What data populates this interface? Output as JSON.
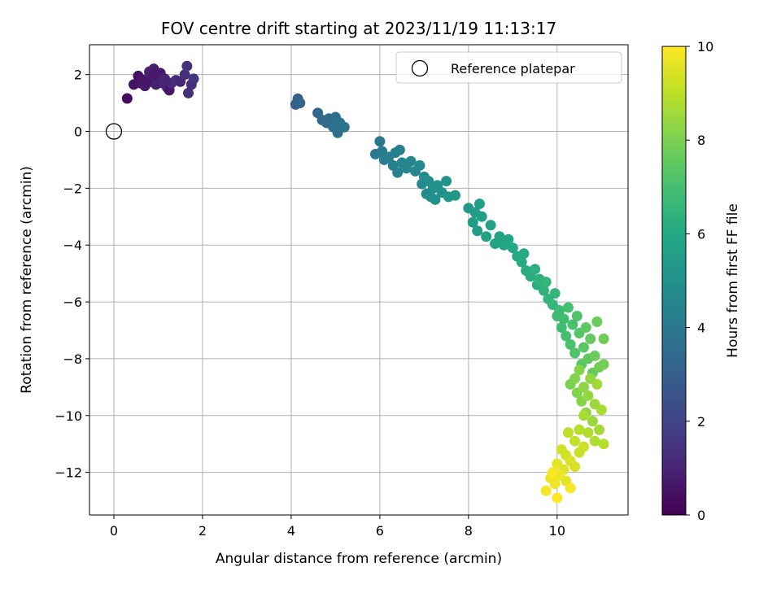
{
  "chart_data": {
    "type": "scatter",
    "title": "FOV centre drift starting at 2023/11/19 11:13:17",
    "xlabel": "Angular distance from reference (arcmin)",
    "ylabel": "Rotation from reference (arcmin)",
    "xlim": [
      -0.55,
      11.6
    ],
    "ylim": [
      -13.5,
      3.05
    ],
    "xticks": [
      0,
      2,
      4,
      6,
      8,
      10
    ],
    "yticks": [
      2,
      0,
      -2,
      -4,
      -6,
      -8,
      -10,
      -12
    ],
    "xtick_labels": [
      "0",
      "2",
      "4",
      "6",
      "8",
      "10"
    ],
    "ytick_labels": [
      "2",
      "0",
      "−2",
      "−4",
      "−6",
      "−8",
      "−10",
      "−12"
    ],
    "grid": true,
    "legend": {
      "placement": "top-right",
      "entries": [
        "Reference platepar"
      ]
    },
    "reference_point": {
      "x": 0,
      "y": 0,
      "label": "Reference platepar"
    },
    "colorbar": {
      "label": "Hours from first FF file",
      "range": [
        0,
        10
      ],
      "ticks": [
        0,
        2,
        4,
        6,
        8,
        10
      ],
      "tick_labels": [
        "0",
        "2",
        "4",
        "6",
        "8",
        "10"
      ],
      "colormap": "viridis"
    },
    "series": [
      {
        "points": [
          {
            "x": 0.3,
            "y": 1.16,
            "t": 0.3
          },
          {
            "x": 0.45,
            "y": 1.65,
            "t": 0.5
          },
          {
            "x": 0.55,
            "y": 1.95,
            "t": 0.4
          },
          {
            "x": 0.6,
            "y": 1.7,
            "t": 0.6
          },
          {
            "x": 0.7,
            "y": 1.6,
            "t": 0.7
          },
          {
            "x": 0.75,
            "y": 1.85,
            "t": 0.8
          },
          {
            "x": 0.8,
            "y": 2.1,
            "t": 0.9
          },
          {
            "x": 0.85,
            "y": 1.75,
            "t": 0.5
          },
          {
            "x": 0.9,
            "y": 2.2,
            "t": 0.8
          },
          {
            "x": 0.95,
            "y": 1.65,
            "t": 0.9
          },
          {
            "x": 1.0,
            "y": 1.9,
            "t": 1.0
          },
          {
            "x": 1.05,
            "y": 2.05,
            "t": 0.7
          },
          {
            "x": 1.1,
            "y": 1.7,
            "t": 1.0
          },
          {
            "x": 1.2,
            "y": 1.55,
            "t": 1.1
          },
          {
            "x": 1.25,
            "y": 1.45,
            "t": 0.6
          },
          {
            "x": 1.3,
            "y": 1.7,
            "t": 1.2
          },
          {
            "x": 1.4,
            "y": 1.8,
            "t": 1.3
          },
          {
            "x": 1.5,
            "y": 1.75,
            "t": 1.1
          },
          {
            "x": 1.6,
            "y": 2.0,
            "t": 1.3
          },
          {
            "x": 1.65,
            "y": 2.3,
            "t": 1.4
          },
          {
            "x": 1.68,
            "y": 1.35,
            "t": 1.4
          },
          {
            "x": 1.75,
            "y": 1.65,
            "t": 1.3
          },
          {
            "x": 1.8,
            "y": 1.85,
            "t": 1.5
          },
          {
            "x": 0.65,
            "y": 1.8,
            "t": 0.6
          },
          {
            "x": 0.88,
            "y": 1.95,
            "t": 0.7
          },
          {
            "x": 1.15,
            "y": 1.85,
            "t": 1.0
          },
          {
            "x": 4.1,
            "y": 0.95,
            "t": 3.0
          },
          {
            "x": 4.15,
            "y": 1.15,
            "t": 3.1
          },
          {
            "x": 4.2,
            "y": 1.0,
            "t": 3.2
          },
          {
            "x": 4.6,
            "y": 0.65,
            "t": 3.3
          },
          {
            "x": 4.7,
            "y": 0.4,
            "t": 3.4
          },
          {
            "x": 4.8,
            "y": 0.3,
            "t": 3.5
          },
          {
            "x": 4.85,
            "y": 0.45,
            "t": 3.5
          },
          {
            "x": 4.95,
            "y": 0.15,
            "t": 3.6
          },
          {
            "x": 5.0,
            "y": 0.5,
            "t": 3.6
          },
          {
            "x": 5.05,
            "y": -0.05,
            "t": 3.7
          },
          {
            "x": 5.1,
            "y": 0.3,
            "t": 3.7
          },
          {
            "x": 5.2,
            "y": 0.15,
            "t": 3.8
          },
          {
            "x": 5.9,
            "y": -0.8,
            "t": 4.0
          },
          {
            "x": 6.0,
            "y": -0.35,
            "t": 4.0
          },
          {
            "x": 6.05,
            "y": -0.7,
            "t": 4.1
          },
          {
            "x": 6.1,
            "y": -1.0,
            "t": 4.2
          },
          {
            "x": 6.2,
            "y": -0.9,
            "t": 4.2
          },
          {
            "x": 6.3,
            "y": -1.2,
            "t": 4.3
          },
          {
            "x": 6.35,
            "y": -0.75,
            "t": 4.3
          },
          {
            "x": 6.4,
            "y": -1.45,
            "t": 4.4
          },
          {
            "x": 6.45,
            "y": -0.65,
            "t": 4.4
          },
          {
            "x": 6.5,
            "y": -1.1,
            "t": 4.5
          },
          {
            "x": 6.6,
            "y": -1.3,
            "t": 4.5
          },
          {
            "x": 6.7,
            "y": -1.05,
            "t": 4.6
          },
          {
            "x": 6.8,
            "y": -1.4,
            "t": 4.6
          },
          {
            "x": 6.9,
            "y": -1.2,
            "t": 4.7
          },
          {
            "x": 6.95,
            "y": -1.85,
            "t": 4.7
          },
          {
            "x": 7.0,
            "y": -1.6,
            "t": 4.8
          },
          {
            "x": 7.05,
            "y": -2.2,
            "t": 4.8
          },
          {
            "x": 7.1,
            "y": -1.75,
            "t": 4.9
          },
          {
            "x": 7.2,
            "y": -2.0,
            "t": 4.9
          },
          {
            "x": 7.25,
            "y": -2.4,
            "t": 5.0
          },
          {
            "x": 7.3,
            "y": -1.9,
            "t": 5.0
          },
          {
            "x": 7.4,
            "y": -2.15,
            "t": 5.1
          },
          {
            "x": 7.5,
            "y": -1.75,
            "t": 5.1
          },
          {
            "x": 7.55,
            "y": -2.3,
            "t": 5.2
          },
          {
            "x": 7.7,
            "y": -2.25,
            "t": 5.2
          },
          {
            "x": 6.55,
            "y": -1.25,
            "t": 4.5
          },
          {
            "x": 7.15,
            "y": -2.3,
            "t": 4.9
          },
          {
            "x": 8.0,
            "y": -2.7,
            "t": 5.4
          },
          {
            "x": 8.1,
            "y": -3.2,
            "t": 5.5
          },
          {
            "x": 8.15,
            "y": -2.85,
            "t": 5.5
          },
          {
            "x": 8.2,
            "y": -3.5,
            "t": 5.5
          },
          {
            "x": 8.25,
            "y": -2.55,
            "t": 5.6
          },
          {
            "x": 8.3,
            "y": -3.0,
            "t": 5.6
          },
          {
            "x": 8.4,
            "y": -3.7,
            "t": 5.7
          },
          {
            "x": 8.5,
            "y": -3.3,
            "t": 5.7
          },
          {
            "x": 8.6,
            "y": -3.95,
            "t": 5.8
          },
          {
            "x": 8.7,
            "y": -3.7,
            "t": 5.8
          },
          {
            "x": 8.8,
            "y": -4.0,
            "t": 5.9
          },
          {
            "x": 8.9,
            "y": -3.8,
            "t": 5.9
          },
          {
            "x": 9.0,
            "y": -4.1,
            "t": 6.0
          },
          {
            "x": 9.1,
            "y": -4.4,
            "t": 6.0
          },
          {
            "x": 9.2,
            "y": -4.6,
            "t": 6.1
          },
          {
            "x": 9.25,
            "y": -4.3,
            "t": 6.1
          },
          {
            "x": 9.3,
            "y": -4.9,
            "t": 6.2
          },
          {
            "x": 9.4,
            "y": -5.1,
            "t": 6.2
          },
          {
            "x": 9.5,
            "y": -4.85,
            "t": 6.3
          },
          {
            "x": 9.55,
            "y": -5.4,
            "t": 6.3
          },
          {
            "x": 9.6,
            "y": -5.2,
            "t": 6.4
          },
          {
            "x": 9.7,
            "y": -5.6,
            "t": 6.4
          },
          {
            "x": 9.75,
            "y": -5.3,
            "t": 6.5
          },
          {
            "x": 9.8,
            "y": -5.9,
            "t": 6.5
          },
          {
            "x": 9.9,
            "y": -6.1,
            "t": 6.6
          },
          {
            "x": 9.95,
            "y": -5.7,
            "t": 6.6
          },
          {
            "x": 10.0,
            "y": -6.5,
            "t": 6.8
          },
          {
            "x": 10.05,
            "y": -6.3,
            "t": 6.8
          },
          {
            "x": 10.1,
            "y": -6.9,
            "t": 6.9
          },
          {
            "x": 10.15,
            "y": -6.6,
            "t": 6.9
          },
          {
            "x": 10.2,
            "y": -7.2,
            "t": 7.0
          },
          {
            "x": 10.25,
            "y": -6.2,
            "t": 7.0
          },
          {
            "x": 10.3,
            "y": -7.5,
            "t": 7.1
          },
          {
            "x": 10.35,
            "y": -6.8,
            "t": 7.1
          },
          {
            "x": 10.4,
            "y": -7.8,
            "t": 7.2
          },
          {
            "x": 10.45,
            "y": -6.5,
            "t": 7.2
          },
          {
            "x": 10.5,
            "y": -7.1,
            "t": 7.3
          },
          {
            "x": 10.55,
            "y": -8.2,
            "t": 7.4
          },
          {
            "x": 10.6,
            "y": -7.6,
            "t": 7.4
          },
          {
            "x": 10.65,
            "y": -6.9,
            "t": 7.5
          },
          {
            "x": 10.7,
            "y": -8.0,
            "t": 7.5
          },
          {
            "x": 10.75,
            "y": -7.3,
            "t": 7.6
          },
          {
            "x": 10.8,
            "y": -8.5,
            "t": 7.6
          },
          {
            "x": 10.85,
            "y": -7.9,
            "t": 7.7
          },
          {
            "x": 10.9,
            "y": -6.7,
            "t": 7.7
          },
          {
            "x": 11.05,
            "y": -7.3,
            "t": 7.8
          },
          {
            "x": 10.95,
            "y": -8.3,
            "t": 7.8
          },
          {
            "x": 11.05,
            "y": -8.2,
            "t": 7.9
          },
          {
            "x": 10.3,
            "y": -8.9,
            "t": 8.0
          },
          {
            "x": 10.4,
            "y": -8.7,
            "t": 8.1
          },
          {
            "x": 10.45,
            "y": -9.2,
            "t": 8.1
          },
          {
            "x": 10.5,
            "y": -8.4,
            "t": 8.2
          },
          {
            "x": 10.55,
            "y": -9.5,
            "t": 8.2
          },
          {
            "x": 10.6,
            "y": -9.0,
            "t": 8.3
          },
          {
            "x": 10.65,
            "y": -9.9,
            "t": 8.3
          },
          {
            "x": 10.7,
            "y": -9.3,
            "t": 8.4
          },
          {
            "x": 10.75,
            "y": -8.7,
            "t": 8.4
          },
          {
            "x": 10.8,
            "y": -10.2,
            "t": 8.5
          },
          {
            "x": 10.85,
            "y": -9.6,
            "t": 8.5
          },
          {
            "x": 10.9,
            "y": -8.9,
            "t": 8.6
          },
          {
            "x": 10.95,
            "y": -10.5,
            "t": 8.6
          },
          {
            "x": 11.0,
            "y": -9.8,
            "t": 8.7
          },
          {
            "x": 10.6,
            "y": -10.0,
            "t": 8.7
          },
          {
            "x": 10.7,
            "y": -10.6,
            "t": 8.8
          },
          {
            "x": 10.85,
            "y": -10.9,
            "t": 8.8
          },
          {
            "x": 11.05,
            "y": -11.0,
            "t": 8.9
          },
          {
            "x": 10.5,
            "y": -10.5,
            "t": 8.9
          },
          {
            "x": 10.25,
            "y": -10.6,
            "t": 9.0
          },
          {
            "x": 10.4,
            "y": -10.9,
            "t": 9.1
          },
          {
            "x": 10.5,
            "y": -11.3,
            "t": 9.2
          },
          {
            "x": 10.6,
            "y": -11.1,
            "t": 9.2
          },
          {
            "x": 10.2,
            "y": -11.4,
            "t": 9.3
          },
          {
            "x": 10.1,
            "y": -11.2,
            "t": 9.3
          },
          {
            "x": 10.3,
            "y": -11.6,
            "t": 9.4
          },
          {
            "x": 10.4,
            "y": -11.8,
            "t": 9.4
          },
          {
            "x": 10.15,
            "y": -11.9,
            "t": 9.5
          },
          {
            "x": 10.0,
            "y": -11.7,
            "t": 9.6
          },
          {
            "x": 10.2,
            "y": -12.3,
            "t": 9.6
          },
          {
            "x": 10.05,
            "y": -12.1,
            "t": 9.7
          },
          {
            "x": 9.95,
            "y": -12.4,
            "t": 9.8
          },
          {
            "x": 9.85,
            "y": -12.2,
            "t": 9.8
          },
          {
            "x": 10.3,
            "y": -12.55,
            "t": 9.9
          },
          {
            "x": 9.75,
            "y": -12.65,
            "t": 9.9
          },
          {
            "x": 10.0,
            "y": -12.9,
            "t": 10.0
          },
          {
            "x": 9.9,
            "y": -12.0,
            "t": 10.0
          }
        ]
      }
    ],
    "colors": {
      "grid": "#b0b0b0",
      "axes": "#000000",
      "legend_border": "#cccccc"
    }
  }
}
